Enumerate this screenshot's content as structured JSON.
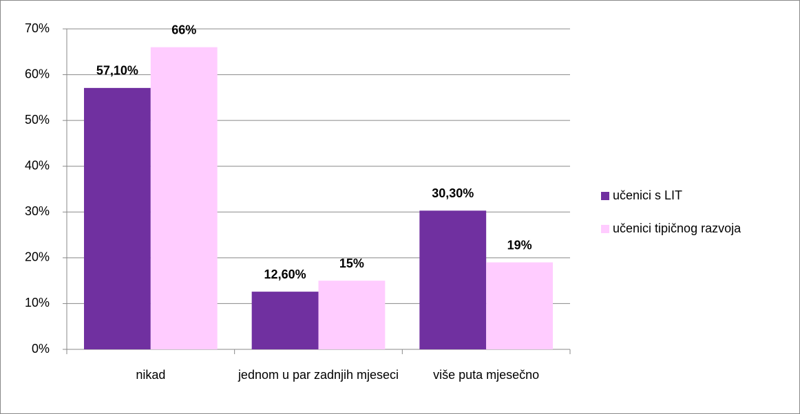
{
  "chart_data": {
    "type": "bar",
    "categories": [
      "nikad",
      "jednom u par zadnjih mjeseci",
      "više puta mjesečno"
    ],
    "series": [
      {
        "name": "učenici s LIT",
        "color": "#7030a0",
        "values": [
          57.1,
          12.6,
          30.3
        ],
        "value_labels": [
          "57,10%",
          "12,60%",
          "30,30%"
        ]
      },
      {
        "name": "učenici tipičnog razvoja",
        "color": "#ffccff",
        "values": [
          66,
          15,
          19
        ],
        "value_labels": [
          "66%",
          "15%",
          "19%"
        ]
      }
    ],
    "ylim": [
      0,
      70
    ],
    "yticks": [
      {
        "value": 0,
        "label": "0%"
      },
      {
        "value": 10,
        "label": "10%"
      },
      {
        "value": 20,
        "label": "20%"
      },
      {
        "value": 30,
        "label": "30%"
      },
      {
        "value": 40,
        "label": "40%"
      },
      {
        "value": 50,
        "label": "50%"
      },
      {
        "value": 60,
        "label": "60%"
      },
      {
        "value": 70,
        "label": "70%"
      }
    ],
    "grid": true,
    "legend": "right"
  }
}
